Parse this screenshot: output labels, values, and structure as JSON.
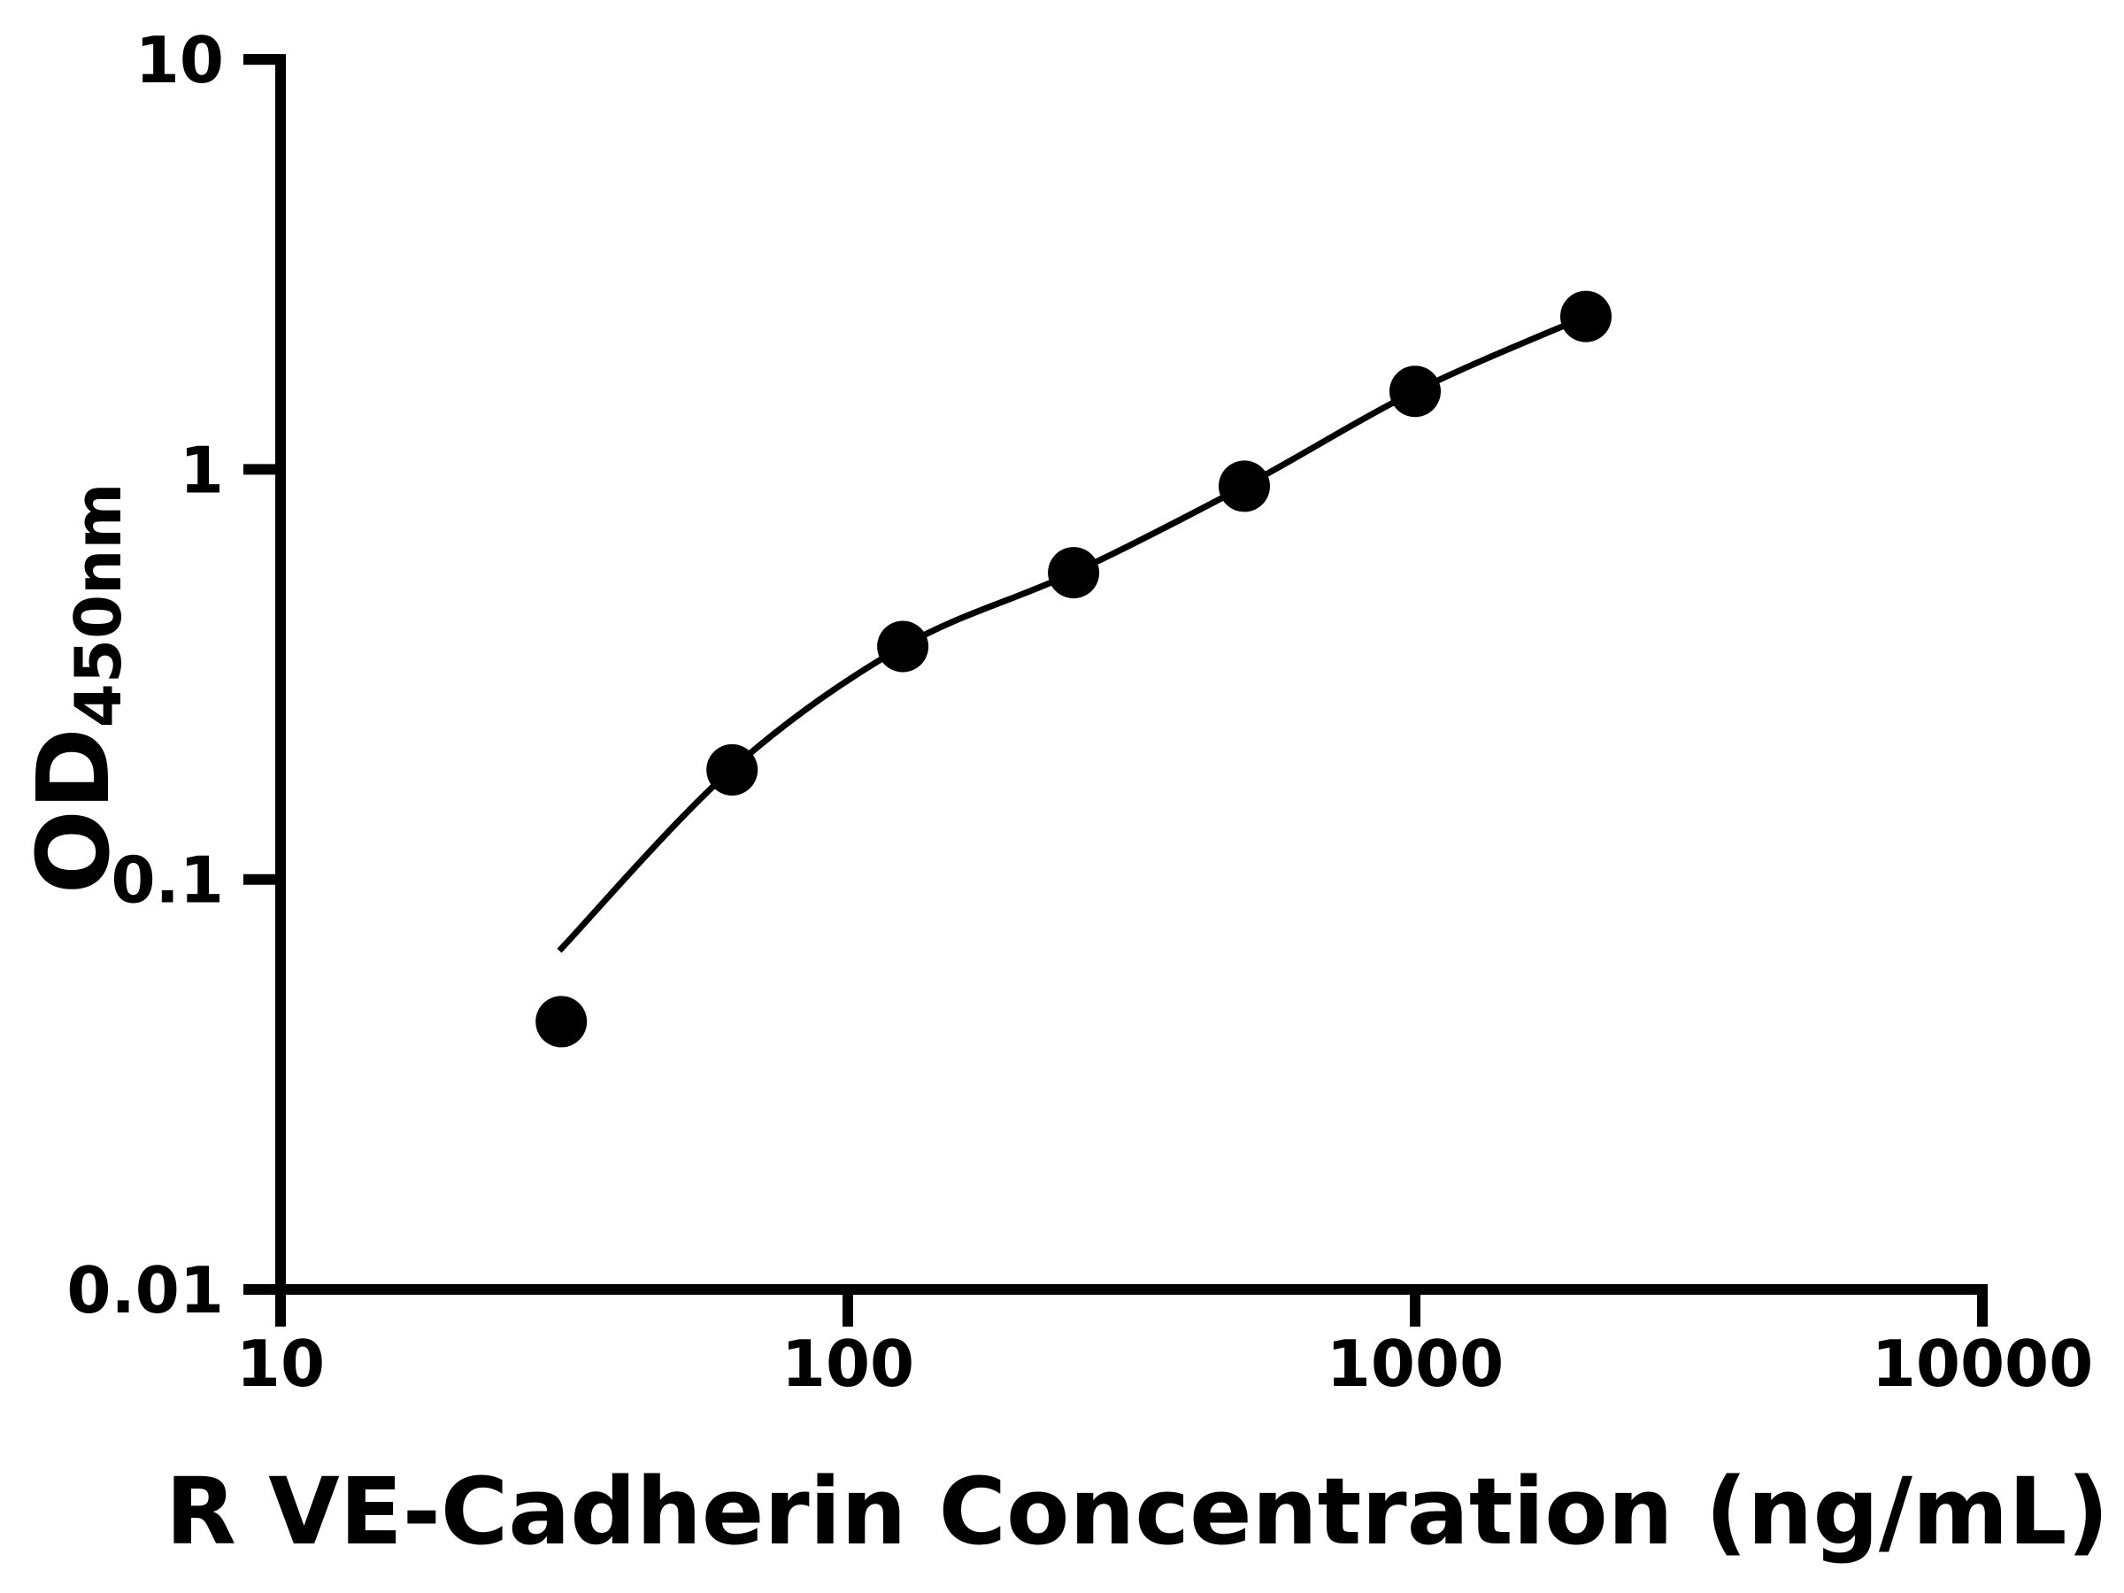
{
  "page": {
    "background": "#ffffff"
  },
  "chart_data": {
    "type": "scatter",
    "title": "",
    "xlabel": "R VE-Cadherin Concentration (ng/mL)",
    "ylabel": "OD450nm",
    "ylabel_main": "OD",
    "ylabel_sub": "450nm",
    "x_scale": "log",
    "y_scale": "log",
    "xlim": [
      10,
      10000
    ],
    "ylim": [
      0.01,
      10
    ],
    "grid": false,
    "legend": null,
    "axis_color": "#000000",
    "marker_color": "#000000",
    "curve_color": "#000000",
    "x_ticks": [
      {
        "value": 10,
        "label": "10"
      },
      {
        "value": 100,
        "label": "100"
      },
      {
        "value": 1000,
        "label": "1000"
      },
      {
        "value": 10000,
        "label": "10000"
      }
    ],
    "y_ticks": [
      {
        "value": 10,
        "label": "10"
      },
      {
        "value": 1,
        "label": "1"
      },
      {
        "value": 0.1,
        "label": "0.1"
      },
      {
        "value": 0.01,
        "label": "0.01"
      }
    ],
    "series": [
      {
        "marker": "filled-circle",
        "points": [
          {
            "x": 31.25,
            "y": 0.045
          },
          {
            "x": 62.5,
            "y": 0.185
          },
          {
            "x": 125,
            "y": 0.37
          },
          {
            "x": 250,
            "y": 0.56
          },
          {
            "x": 500,
            "y": 0.91
          },
          {
            "x": 1000,
            "y": 1.55
          },
          {
            "x": 2000,
            "y": 2.36
          }
        ]
      }
    ],
    "fit_curve": {
      "points": [
        [
          31,
          0.067
        ],
        [
          62.5,
          0.186
        ],
        [
          125,
          0.37
        ],
        [
          250,
          0.56
        ],
        [
          500,
          0.91
        ],
        [
          1000,
          1.55
        ],
        [
          2000,
          2.36
        ]
      ]
    }
  }
}
